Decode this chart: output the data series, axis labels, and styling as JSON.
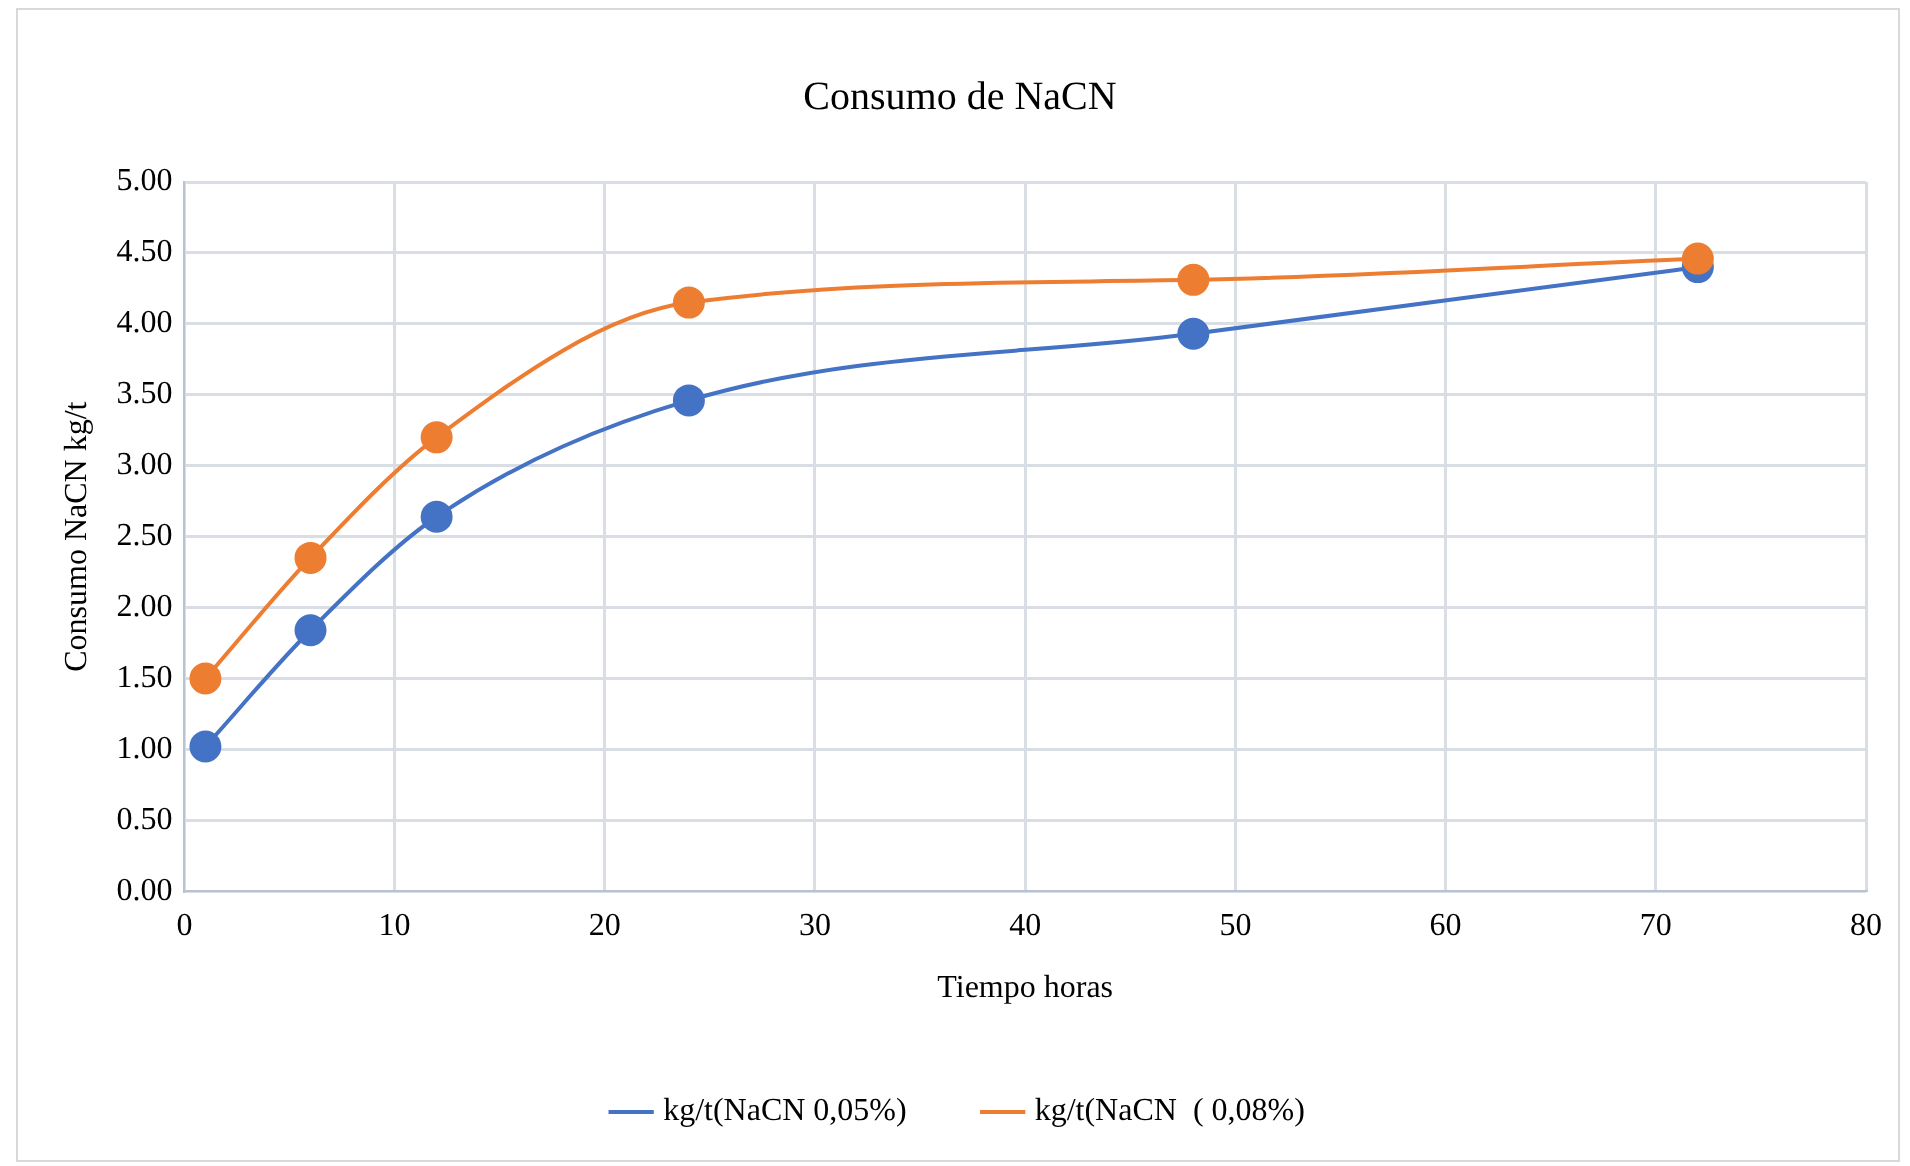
{
  "chart_data": {
    "type": "line",
    "title": "Consumo de NaCN",
    "xlabel": "Tiempo horas",
    "ylabel": "Consumo NaCN kg/t",
    "x": [
      1,
      6,
      12,
      24,
      48,
      72
    ],
    "series": [
      {
        "name": "kg/t(NaCN 0,05%)",
        "color": "#4472c4",
        "values": [
          1.02,
          1.84,
          2.64,
          3.46,
          3.93,
          4.4
        ]
      },
      {
        "name": "kg/t(NaCN  ( 0,08%)",
        "color": "#ed7d31",
        "values": [
          1.5,
          2.35,
          3.2,
          4.15,
          4.31,
          4.46
        ]
      }
    ],
    "xlim": [
      0,
      80
    ],
    "xticks": [
      0,
      10,
      20,
      30,
      40,
      50,
      60,
      70,
      80
    ],
    "ylim": [
      0,
      5
    ],
    "yticks": [
      {
        "value": 0,
        "label": "0.00"
      },
      {
        "value": 0.5,
        "label": "0.50"
      },
      {
        "value": 1,
        "label": "1.00"
      },
      {
        "value": 1.5,
        "label": "1.50"
      },
      {
        "value": 2,
        "label": "2.00"
      },
      {
        "value": 2.5,
        "label": "2.50"
      },
      {
        "value": 3,
        "label": "3.00"
      },
      {
        "value": 3.5,
        "label": "3.50"
      },
      {
        "value": 4,
        "label": "4.00"
      },
      {
        "value": 4.5,
        "label": "4.50"
      },
      {
        "value": 5,
        "label": "5.00"
      }
    ],
    "grid": true,
    "legend": "bottom",
    "marker": "circle",
    "line_style": "solid"
  }
}
